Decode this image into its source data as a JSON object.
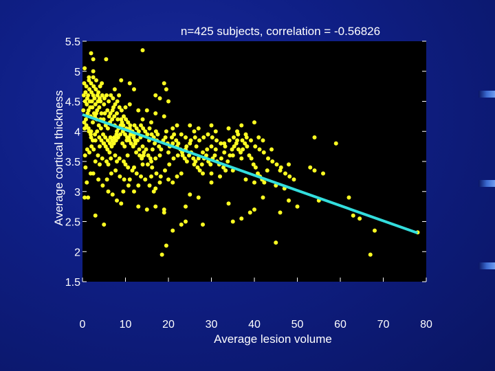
{
  "chart_data": {
    "type": "scatter",
    "title": "n=425 subjects, correlation = -0.56826",
    "xlabel": "Average lesion volume",
    "ylabel": "Average cortical thickness",
    "xlim": [
      0,
      80
    ],
    "ylim": [
      1.5,
      5.5
    ],
    "xticks": [
      0,
      10,
      20,
      30,
      40,
      50,
      60,
      70,
      80
    ],
    "yticks": [
      1.5,
      2,
      2.5,
      3,
      3.5,
      4,
      4.5,
      5,
      5.5
    ],
    "xtick_labels": [
      "0",
      "10",
      "20",
      "30",
      "40",
      "50",
      "60",
      "70",
      "80"
    ],
    "ytick_labels": [
      "1.5",
      "2",
      "2.5",
      "3",
      "3.5",
      "4",
      "4.5",
      "5",
      "5.5"
    ],
    "background": "#000000",
    "point_color": "#ffff22",
    "line_color": "#33dddd",
    "grid": false,
    "fit_line": {
      "x": [
        0,
        78
      ],
      "y": [
        4.28,
        2.31
      ]
    },
    "points": [
      [
        14,
        5.35
      ],
      [
        2,
        5.3
      ],
      [
        2.5,
        5.2
      ],
      [
        5.5,
        5.2
      ],
      [
        0.5,
        5.05
      ],
      [
        2.5,
        5.0
      ],
      [
        1.5,
        4.9
      ],
      [
        2.5,
        4.9
      ],
      [
        3.2,
        4.85
      ],
      [
        4.5,
        4.8
      ],
      [
        9,
        4.85
      ],
      [
        11,
        4.8
      ],
      [
        19,
        4.8
      ],
      [
        7.5,
        4.7
      ],
      [
        12,
        4.7
      ],
      [
        19.5,
        4.7
      ],
      [
        8.5,
        4.6
      ],
      [
        17,
        4.6
      ],
      [
        18,
        4.55
      ],
      [
        20,
        4.5
      ],
      [
        11,
        4.45
      ],
      [
        10,
        4.4
      ],
      [
        13,
        4.35
      ],
      [
        15,
        4.35
      ],
      [
        17,
        4.3
      ],
      [
        19,
        4.25
      ],
      [
        14,
        4.2
      ],
      [
        16,
        4.15
      ],
      [
        9,
        4.2
      ],
      [
        7.5,
        4.1
      ],
      [
        22,
        4.1
      ],
      [
        25,
        4.1
      ],
      [
        26,
        4.0
      ],
      [
        27,
        4.05
      ],
      [
        30,
        4.1
      ],
      [
        31,
        4.0
      ],
      [
        34,
        4.05
      ],
      [
        37,
        4.1
      ],
      [
        40,
        4.15
      ],
      [
        36,
        4.0
      ],
      [
        38,
        3.95
      ],
      [
        41,
        3.9
      ],
      [
        42,
        3.85
      ],
      [
        36,
        3.85
      ],
      [
        33,
        3.8
      ],
      [
        30,
        3.75
      ],
      [
        29,
        3.7
      ],
      [
        28,
        3.65
      ],
      [
        24,
        3.7
      ],
      [
        22,
        3.75
      ],
      [
        21,
        3.8
      ],
      [
        20,
        3.65
      ],
      [
        18,
        3.6
      ],
      [
        17,
        3.55
      ],
      [
        16,
        3.5
      ],
      [
        14,
        3.45
      ],
      [
        12,
        3.4
      ],
      [
        10,
        3.45
      ],
      [
        8,
        3.5
      ],
      [
        6,
        3.45
      ],
      [
        4,
        3.45
      ],
      [
        3,
        3.5
      ],
      [
        2.5,
        3.3
      ],
      [
        1,
        3.15
      ],
      [
        0.5,
        2.9
      ],
      [
        1.3,
        2.9
      ],
      [
        6,
        3.0
      ],
      [
        7,
        2.95
      ],
      [
        8,
        2.85
      ],
      [
        9,
        2.8
      ],
      [
        3,
        2.6
      ],
      [
        5,
        2.45
      ],
      [
        13,
        2.75
      ],
      [
        15,
        2.7
      ],
      [
        19,
        2.7
      ],
      [
        24,
        2.75
      ],
      [
        25,
        2.95
      ],
      [
        27,
        2.9
      ],
      [
        30,
        3.3
      ],
      [
        32,
        3.25
      ],
      [
        35,
        3.35
      ],
      [
        38,
        3.2
      ],
      [
        40,
        3.15
      ],
      [
        43,
        3.35
      ],
      [
        46,
        3.35
      ],
      [
        47,
        3.05
      ],
      [
        48,
        2.85
      ],
      [
        46,
        2.65
      ],
      [
        50,
        2.75
      ],
      [
        53,
        3.4
      ],
      [
        54,
        3.35
      ],
      [
        56,
        3.3
      ],
      [
        59,
        3.8
      ],
      [
        54,
        3.9
      ],
      [
        55,
        2.85
      ],
      [
        62,
        2.9
      ],
      [
        63,
        2.6
      ],
      [
        64.5,
        2.55
      ],
      [
        68,
        2.35
      ],
      [
        34,
        2.8
      ],
      [
        37,
        2.55
      ],
      [
        39,
        2.65
      ],
      [
        40,
        2.7
      ],
      [
        45,
        2.15
      ],
      [
        35,
        2.5
      ],
      [
        42,
        2.9
      ],
      [
        28,
        2.45
      ],
      [
        24,
        2.5
      ],
      [
        23,
        2.45
      ],
      [
        21,
        2.35
      ],
      [
        19,
        2.65
      ],
      [
        17,
        2.75
      ],
      [
        18.5,
        1.95
      ],
      [
        19.5,
        2.1
      ],
      [
        67,
        1.95
      ],
      [
        78,
        2.32
      ],
      [
        44,
        3.7
      ],
      [
        45,
        3.1
      ],
      [
        48,
        3.45
      ],
      [
        31,
        3.7
      ],
      [
        33,
        3.65
      ],
      [
        35,
        3.6
      ],
      [
        37,
        3.55
      ],
      [
        26,
        3.45
      ],
      [
        27,
        3.55
      ],
      [
        28,
        3.3
      ],
      [
        30,
        3.15
      ],
      [
        23,
        3.3
      ],
      [
        22,
        3.25
      ],
      [
        21,
        3.15
      ],
      [
        20,
        3.2
      ],
      [
        18,
        3.15
      ],
      [
        17,
        3.05
      ],
      [
        16,
        3.25
      ],
      [
        13,
        3.1
      ],
      [
        12,
        3.0
      ],
      [
        11,
        3.2
      ],
      [
        9.5,
        3.0
      ],
      [
        10.5,
        3.6
      ],
      [
        12.5,
        3.65
      ],
      [
        14,
        3.75
      ],
      [
        15.5,
        3.85
      ],
      [
        17.5,
        3.95
      ],
      [
        19.5,
        4.0
      ],
      [
        21,
        4.05
      ],
      [
        23,
        3.95
      ],
      [
        24,
        3.9
      ],
      [
        25,
        3.8
      ],
      [
        26.5,
        3.75
      ],
      [
        13.5,
        3.9
      ],
      [
        12,
        3.95
      ],
      [
        11,
        4.05
      ],
      [
        9.5,
        4.1
      ],
      [
        8,
        4.0
      ],
      [
        6.5,
        3.9
      ],
      [
        5,
        3.8
      ],
      [
        4,
        3.75
      ],
      [
        3,
        3.85
      ],
      [
        2,
        3.9
      ],
      [
        1.5,
        4.0
      ],
      [
        0.5,
        4.05
      ],
      [
        0.8,
        4.2
      ],
      [
        1.2,
        4.3
      ],
      [
        1.8,
        4.4
      ],
      [
        2.2,
        4.5
      ],
      [
        2.8,
        4.55
      ],
      [
        3.5,
        4.6
      ],
      [
        4.2,
        4.5
      ],
      [
        5,
        4.45
      ],
      [
        5.8,
        4.35
      ],
      [
        6.5,
        4.3
      ],
      [
        7.2,
        4.4
      ],
      [
        8,
        4.3
      ],
      [
        0.3,
        4.6
      ],
      [
        0.7,
        4.65
      ],
      [
        1.1,
        4.55
      ],
      [
        1.6,
        4.7
      ],
      [
        2.1,
        4.65
      ],
      [
        2.6,
        4.75
      ],
      [
        3.1,
        4.7
      ],
      [
        3.7,
        4.65
      ],
      [
        4.1,
        4.75
      ],
      [
        0.4,
        4.8
      ],
      [
        1.0,
        4.45
      ],
      [
        1.4,
        4.35
      ],
      [
        1.9,
        4.25
      ],
      [
        2.4,
        4.15
      ],
      [
        2.9,
        4.25
      ],
      [
        3.4,
        4.35
      ],
      [
        3.9,
        4.4
      ],
      [
        4.4,
        4.3
      ],
      [
        4.9,
        4.2
      ],
      [
        5.4,
        4.1
      ],
      [
        5.9,
        4.05
      ],
      [
        6.4,
        4.15
      ],
      [
        6.9,
        4.2
      ],
      [
        7.4,
        4.25
      ],
      [
        0.2,
        4.35
      ],
      [
        0.6,
        4.5
      ],
      [
        1.3,
        4.6
      ],
      [
        1.7,
        4.5
      ],
      [
        2.3,
        4.4
      ],
      [
        2.7,
        4.3
      ],
      [
        3.3,
        4.2
      ],
      [
        3.8,
        4.1
      ],
      [
        4.3,
        4.05
      ],
      [
        4.8,
        3.95
      ],
      [
        5.3,
        3.9
      ],
      [
        5.8,
        3.7
      ],
      [
        6.3,
        3.65
      ],
      [
        6.8,
        3.75
      ],
      [
        7.3,
        3.8
      ],
      [
        7.8,
        3.85
      ],
      [
        8.3,
        3.9
      ],
      [
        8.8,
        3.95
      ],
      [
        9.3,
        3.8
      ],
      [
        9.8,
        3.75
      ],
      [
        10.3,
        3.85
      ],
      [
        10.8,
        3.9
      ],
      [
        11.3,
        3.8
      ],
      [
        11.8,
        3.75
      ],
      [
        12.3,
        3.8
      ],
      [
        12.8,
        3.85
      ],
      [
        13.3,
        3.6
      ],
      [
        13.8,
        3.55
      ],
      [
        14.3,
        3.65
      ],
      [
        14.8,
        3.7
      ],
      [
        15.3,
        3.6
      ],
      [
        15.8,
        3.55
      ],
      [
        16.3,
        3.7
      ],
      [
        16.8,
        3.8
      ],
      [
        17.3,
        3.85
      ],
      [
        17.8,
        3.75
      ],
      [
        18.3,
        3.7
      ],
      [
        18.8,
        3.85
      ],
      [
        19.3,
        3.9
      ],
      [
        19.8,
        3.8
      ],
      [
        20.3,
        3.75
      ],
      [
        20.8,
        3.9
      ],
      [
        21.3,
        3.95
      ],
      [
        21.8,
        3.85
      ],
      [
        22.3,
        3.8
      ],
      [
        22.8,
        3.7
      ],
      [
        23.3,
        3.6
      ],
      [
        23.8,
        3.55
      ],
      [
        24.3,
        3.5
      ],
      [
        24.8,
        3.6
      ],
      [
        25.3,
        3.65
      ],
      [
        25.8,
        3.55
      ],
      [
        26.3,
        3.5
      ],
      [
        26.8,
        3.4
      ],
      [
        27.3,
        3.35
      ],
      [
        27.8,
        3.45
      ],
      [
        28.3,
        3.55
      ],
      [
        28.8,
        3.6
      ],
      [
        29.3,
        3.5
      ],
      [
        29.8,
        3.45
      ],
      [
        30.3,
        3.55
      ],
      [
        30.8,
        3.6
      ],
      [
        31.3,
        3.5
      ],
      [
        31.8,
        3.45
      ],
      [
        32.3,
        3.55
      ],
      [
        32.8,
        3.4
      ],
      [
        33.3,
        3.35
      ],
      [
        33.8,
        3.5
      ],
      [
        34.3,
        3.6
      ],
      [
        34.8,
        3.7
      ],
      [
        35.3,
        3.75
      ],
      [
        35.8,
        3.8
      ],
      [
        36.3,
        3.7
      ],
      [
        36.8,
        3.65
      ],
      [
        37.3,
        3.7
      ],
      [
        37.8,
        3.8
      ],
      [
        38.3,
        3.75
      ],
      [
        38.8,
        3.6
      ],
      [
        39.3,
        3.55
      ],
      [
        39.8,
        3.45
      ],
      [
        40.3,
        3.4
      ],
      [
        40.8,
        3.3
      ],
      [
        41.3,
        3.25
      ],
      [
        41.8,
        3.2
      ],
      [
        42.3,
        3.15
      ],
      [
        0.9,
        4.75
      ],
      [
        1.5,
        4.85
      ],
      [
        2.0,
        4.8
      ],
      [
        2.5,
        4.6
      ],
      [
        3.0,
        4.45
      ],
      [
        3.6,
        4.5
      ],
      [
        4.0,
        4.55
      ],
      [
        4.6,
        4.6
      ],
      [
        5.1,
        4.55
      ],
      [
        5.6,
        4.6
      ],
      [
        6.1,
        4.5
      ],
      [
        6.6,
        4.6
      ],
      [
        7.1,
        4.55
      ],
      [
        7.6,
        4.45
      ],
      [
        8.1,
        4.5
      ],
      [
        8.6,
        4.4
      ],
      [
        9.1,
        4.35
      ],
      [
        9.6,
        4.25
      ],
      [
        10.1,
        4.2
      ],
      [
        10.6,
        4.15
      ],
      [
        11.1,
        4.1
      ],
      [
        11.6,
        4.0
      ],
      [
        12.1,
        4.1
      ],
      [
        12.6,
        4.05
      ],
      [
        13.1,
        4.0
      ],
      [
        13.6,
        4.1
      ],
      [
        14.1,
        4.05
      ],
      [
        14.6,
        4.0
      ],
      [
        15.1,
        3.95
      ],
      [
        15.6,
        4.05
      ],
      [
        16.1,
        3.95
      ],
      [
        16.6,
        3.9
      ],
      [
        17.1,
        4.0
      ],
      [
        0.6,
        3.6
      ],
      [
        1.1,
        3.7
      ],
      [
        1.6,
        3.65
      ],
      [
        2.1,
        3.75
      ],
      [
        2.6,
        3.7
      ],
      [
        3.6,
        3.6
      ],
      [
        4.6,
        3.55
      ],
      [
        5.6,
        3.5
      ],
      [
        6.6,
        3.55
      ],
      [
        7.6,
        3.6
      ],
      [
        8.6,
        3.55
      ],
      [
        9.6,
        3.5
      ],
      [
        10.6,
        3.4
      ],
      [
        11.6,
        3.35
      ],
      [
        12.6,
        3.3
      ],
      [
        13.6,
        3.25
      ],
      [
        14.6,
        3.2
      ],
      [
        15.6,
        3.1
      ],
      [
        16.6,
        3.0
      ],
      [
        0.7,
        3.4
      ],
      [
        1.9,
        3.3
      ],
      [
        3.7,
        3.2
      ],
      [
        4.7,
        3.1
      ],
      [
        5.7,
        3.2
      ],
      [
        6.7,
        3.3
      ],
      [
        7.7,
        3.35
      ],
      [
        8.7,
        3.25
      ],
      [
        9.7,
        3.2
      ],
      [
        10.7,
        3.1
      ],
      [
        0.4,
        4.15
      ],
      [
        0.9,
        4.1
      ],
      [
        1.4,
        4.05
      ],
      [
        1.9,
        3.95
      ],
      [
        2.4,
        3.85
      ],
      [
        2.9,
        3.95
      ],
      [
        3.4,
        4.0
      ],
      [
        3.9,
        3.9
      ],
      [
        4.4,
        3.85
      ],
      [
        4.9,
        3.8
      ],
      [
        5.4,
        3.75
      ],
      [
        5.9,
        3.85
      ],
      [
        6.4,
        3.8
      ],
      [
        6.9,
        3.85
      ],
      [
        7.4,
        3.9
      ],
      [
        7.9,
        3.95
      ],
      [
        8.4,
        4.05
      ],
      [
        8.9,
        4.1
      ],
      [
        9.4,
        4.0
      ],
      [
        9.9,
        3.95
      ],
      [
        10.4,
        3.9
      ],
      [
        10.9,
        3.85
      ],
      [
        11.4,
        3.95
      ],
      [
        11.9,
        3.9
      ],
      [
        2.0,
        4.0
      ],
      [
        3.2,
        4.3
      ],
      [
        4.2,
        4.2
      ],
      [
        5.2,
        4.3
      ],
      [
        6.2,
        4.25
      ],
      [
        7.0,
        4.35
      ],
      [
        8.2,
        4.2
      ],
      [
        9.2,
        4.15
      ],
      [
        10.2,
        4.05
      ],
      [
        11.2,
        3.95
      ],
      [
        12.2,
        3.85
      ],
      [
        13.2,
        3.7
      ],
      [
        14.2,
        3.6
      ],
      [
        15.2,
        3.45
      ],
      [
        16.2,
        3.4
      ],
      [
        17.2,
        3.3
      ],
      [
        18.2,
        3.25
      ],
      [
        19.2,
        3.35
      ],
      [
        20.2,
        3.45
      ],
      [
        21.2,
        3.55
      ],
      [
        22.2,
        3.6
      ],
      [
        23.2,
        3.65
      ],
      [
        24.2,
        3.75
      ],
      [
        25.2,
        3.85
      ],
      [
        26.2,
        3.9
      ],
      [
        27.2,
        3.85
      ],
      [
        28.2,
        3.9
      ],
      [
        29.2,
        3.95
      ],
      [
        30.2,
        3.9
      ],
      [
        31.2,
        3.85
      ],
      [
        32.2,
        3.8
      ],
      [
        33.2,
        3.75
      ],
      [
        34.2,
        3.85
      ],
      [
        35.2,
        3.9
      ],
      [
        36.2,
        3.95
      ],
      [
        37.2,
        3.85
      ],
      [
        38.2,
        3.9
      ],
      [
        39.2,
        3.85
      ],
      [
        40.2,
        3.75
      ],
      [
        41.2,
        3.7
      ],
      [
        42.2,
        3.65
      ],
      [
        43.2,
        3.55
      ],
      [
        44.2,
        3.5
      ],
      [
        45.2,
        3.45
      ],
      [
        46.2,
        3.4
      ],
      [
        47.2,
        3.3
      ],
      [
        48.2,
        3.25
      ],
      [
        49.2,
        3.2
      ]
    ]
  }
}
